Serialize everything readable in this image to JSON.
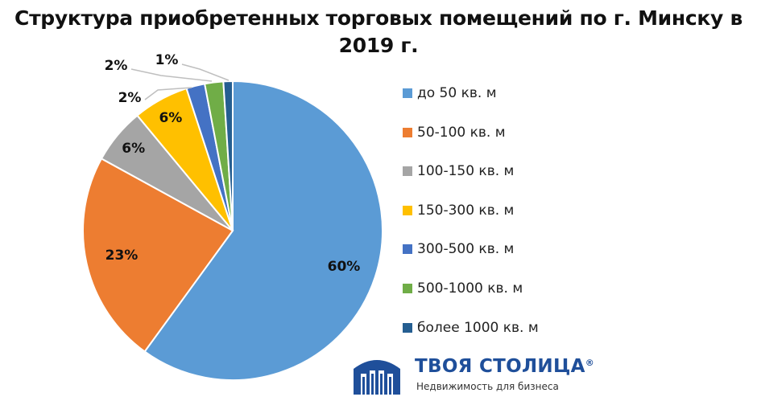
{
  "chart_data": {
    "type": "pie",
    "title_line1": "Структура приобретенных торговых помещений по г. Минску в",
    "title_line2": "2019 г.",
    "slices": [
      {
        "label": "до 50 кв. м",
        "value": 60,
        "display": "60%",
        "color": "#5b9bd5"
      },
      {
        "label": "50-100 кв. м",
        "value": 23,
        "display": "23%",
        "color": "#ed7d31"
      },
      {
        "label": "100-150 кв. м",
        "value": 6,
        "display": "6%",
        "color": "#a5a5a5"
      },
      {
        "label": "150-300 кв. м",
        "value": 6,
        "display": "6%",
        "color": "#ffc000"
      },
      {
        "label": "300-500 кв. м",
        "value": 2,
        "display": "2%",
        "color": "#4472c4"
      },
      {
        "label": "500-1000 кв. м",
        "value": 2,
        "display": "2%",
        "color": "#70ad47"
      },
      {
        "label": "более 1000 кв. м",
        "value": 1,
        "display": "1%",
        "color": "#255e91"
      }
    ],
    "legend_position": "right"
  },
  "logo": {
    "name": "ТВОЯ СТОЛИЦА",
    "registered": "®",
    "tagline": "Недвижимость для бизнеса",
    "color": "#1f4f9a"
  }
}
